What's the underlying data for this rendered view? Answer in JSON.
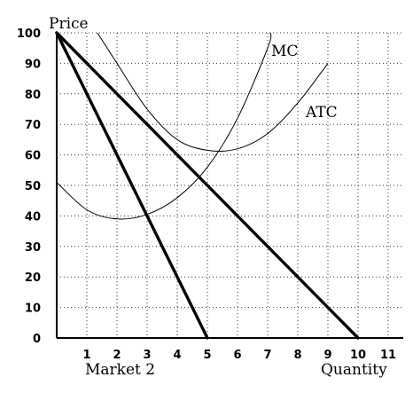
{
  "chart_data": {
    "type": "line",
    "ylabel": "Price",
    "xlabel": "Quantity",
    "caption": "Market 2",
    "xlim": [
      0,
      11.5
    ],
    "ylim": [
      0,
      100
    ],
    "xticks": [
      1,
      2,
      3,
      4,
      5,
      6,
      7,
      8,
      9,
      10,
      11
    ],
    "yticks": [
      0,
      10,
      20,
      30,
      40,
      50,
      60,
      70,
      80,
      90,
      100
    ],
    "grid": true,
    "series": [
      {
        "label": "",
        "style": "bold",
        "points": [
          [
            0,
            100
          ],
          [
            10,
            0
          ]
        ]
      },
      {
        "label": "",
        "style": "bold",
        "points": [
          [
            0,
            100
          ],
          [
            5,
            0
          ]
        ]
      },
      {
        "label": "MC",
        "style": "thin",
        "points": [
          [
            0,
            51
          ],
          [
            1,
            42
          ],
          [
            2,
            39
          ],
          [
            3,
            40.5
          ],
          [
            4,
            46
          ],
          [
            5,
            56
          ],
          [
            6,
            72
          ],
          [
            7,
            95
          ],
          [
            7.1,
            100
          ]
        ]
      },
      {
        "label": "ATC",
        "style": "thin",
        "points": [
          [
            1.35,
            100
          ],
          [
            2,
            90
          ],
          [
            3,
            75
          ],
          [
            4,
            65
          ],
          [
            5,
            61.5
          ],
          [
            6,
            62
          ],
          [
            7,
            67
          ],
          [
            8,
            77
          ],
          [
            9,
            90
          ]
        ]
      }
    ]
  }
}
